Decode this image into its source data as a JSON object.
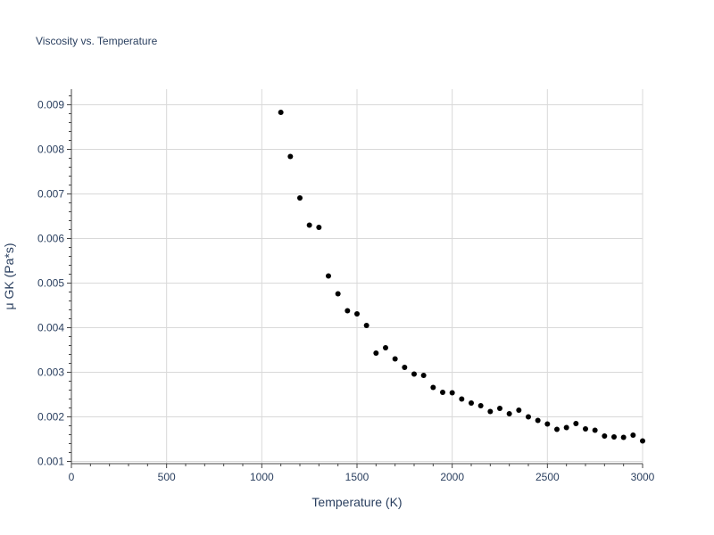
{
  "chart_data": {
    "type": "scatter",
    "title": "Viscosity vs. Temperature",
    "xlabel": "Temperature (K)",
    "ylabel": "μ GK (Pa*s)",
    "xlim": [
      0,
      3000
    ],
    "ylim": [
      0.00095,
      0.00935
    ],
    "xticks": [
      0,
      500,
      1000,
      1500,
      2000,
      2500,
      3000
    ],
    "xtick_labels": [
      "0",
      "500",
      "1000",
      "1500",
      "2000",
      "2500",
      "3000"
    ],
    "yticks": [
      0.001,
      0.002,
      0.003,
      0.004,
      0.005,
      0.006,
      0.007,
      0.008,
      0.009
    ],
    "ytick_labels": [
      "0.001",
      "0.002",
      "0.003",
      "0.004",
      "0.005",
      "0.006",
      "0.007",
      "0.008",
      "0.009"
    ],
    "grid": true,
    "marker_color": "#000000",
    "series": [
      {
        "name": "μ GK",
        "x": [
          1100,
          1150,
          1200,
          1250,
          1300,
          1350,
          1400,
          1450,
          1500,
          1550,
          1600,
          1650,
          1700,
          1750,
          1800,
          1850,
          1900,
          1950,
          2000,
          2050,
          2100,
          2150,
          2200,
          2250,
          2300,
          2350,
          2400,
          2450,
          2500,
          2550,
          2600,
          2650,
          2700,
          2750,
          2800,
          2850,
          2900,
          2950,
          3000
        ],
        "y": [
          0.00883,
          0.00784,
          0.00691,
          0.0063,
          0.00625,
          0.00516,
          0.00476,
          0.00438,
          0.00431,
          0.00405,
          0.00343,
          0.00355,
          0.0033,
          0.00311,
          0.00296,
          0.00293,
          0.00266,
          0.00255,
          0.00254,
          0.0024,
          0.00231,
          0.00225,
          0.00212,
          0.00219,
          0.00207,
          0.00215,
          0.002,
          0.00192,
          0.00184,
          0.00172,
          0.00176,
          0.00185,
          0.00173,
          0.0017,
          0.00157,
          0.00155,
          0.00154,
          0.00159,
          0.00146
        ]
      }
    ]
  }
}
